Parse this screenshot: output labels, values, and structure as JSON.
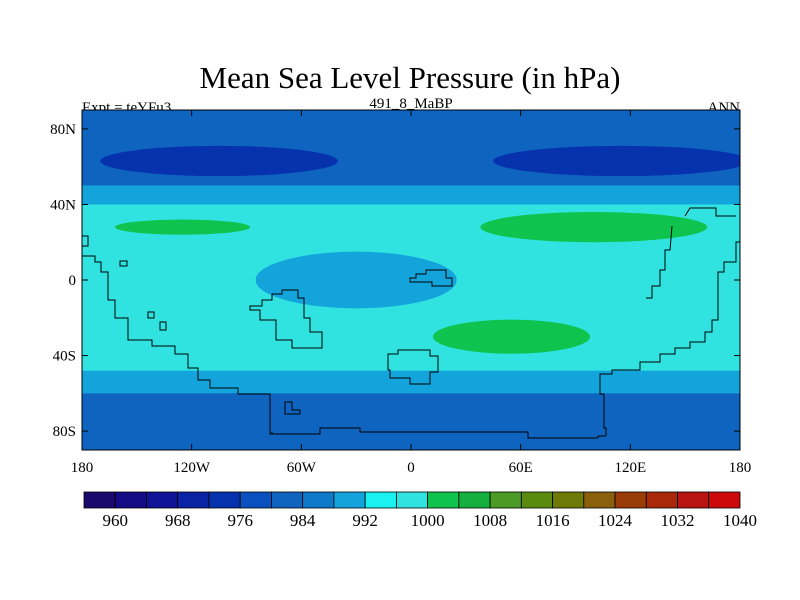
{
  "chart_data": {
    "type": "heatmap",
    "title": "Mean Sea Level Pressure (in hPa)",
    "subtitle_left": "Expt = teYFu3",
    "subtitle_center": "491_8_MaBP",
    "subtitle_right": "ANN",
    "x_ticks": [
      "180",
      "120W",
      "60W",
      "0",
      "60E",
      "120E",
      "180"
    ],
    "x_tick_values": [
      -180,
      -120,
      -60,
      0,
      60,
      120,
      180
    ],
    "y_ticks": [
      "80N",
      "40N",
      "0",
      "40S",
      "80S"
    ],
    "y_tick_values": [
      80,
      40,
      0,
      -40,
      -80
    ],
    "xlim": [
      -180,
      180
    ],
    "ylim": [
      -90,
      90
    ],
    "colorbar": {
      "labels": [
        "960",
        "968",
        "976",
        "984",
        "992",
        "1000",
        "1008",
        "1016",
        "1024",
        "1032",
        "1040"
      ],
      "levels": [
        960,
        964,
        968,
        972,
        976,
        980,
        984,
        988,
        992,
        996,
        1000,
        1004,
        1008,
        1012,
        1016,
        1020,
        1024,
        1028,
        1032,
        1036,
        1040
      ],
      "colors": [
        "#1a0a6e",
        "#140c86",
        "#0f1496",
        "#0a22a4",
        "#0633ad",
        "#0a50be",
        "#0f64c0",
        "#0e79c8",
        "#14a4dc",
        "#19f2f0",
        "#30e3e0",
        "#0fc44e",
        "#13b040",
        "#4a9a25",
        "#5a8a10",
        "#6e7a08",
        "#8a600c",
        "#9a3c08",
        "#a82808",
        "#b81410",
        "#cc0a0a"
      ]
    },
    "regions": [
      {
        "level": 1000,
        "kind": "band",
        "lat": [
          -55,
          45
        ]
      },
      {
        "level": 992,
        "kind": "band",
        "lat": [
          -62,
          -48
        ]
      },
      {
        "level": 992,
        "kind": "band",
        "lat": [
          40,
          50
        ]
      },
      {
        "level": 984,
        "kind": "band",
        "lat": [
          -90,
          -60
        ]
      },
      {
        "level": 984,
        "kind": "band",
        "lat": [
          50,
          90
        ]
      },
      {
        "level": 976,
        "kind": "ellipse",
        "lon": -105,
        "lat": 63,
        "rlon": 65,
        "rlat": 8
      },
      {
        "level": 976,
        "kind": "ellipse",
        "lon": 115,
        "lat": 63,
        "rlon": 70,
        "rlat": 8
      },
      {
        "level": 992,
        "kind": "ellipse",
        "lon": -30,
        "lat": 0,
        "rlon": 55,
        "rlat": 15
      },
      {
        "level": 1004,
        "kind": "ellipse",
        "lon": -125,
        "lat": 28,
        "rlon": 37,
        "rlat": 4
      },
      {
        "level": 1004,
        "kind": "ellipse",
        "lon": 100,
        "lat": 28,
        "rlon": 62,
        "rlat": 8
      },
      {
        "level": 1004,
        "kind": "ellipse",
        "lon": 55,
        "lat": -30,
        "rlon": 43,
        "rlat": 9
      }
    ]
  }
}
